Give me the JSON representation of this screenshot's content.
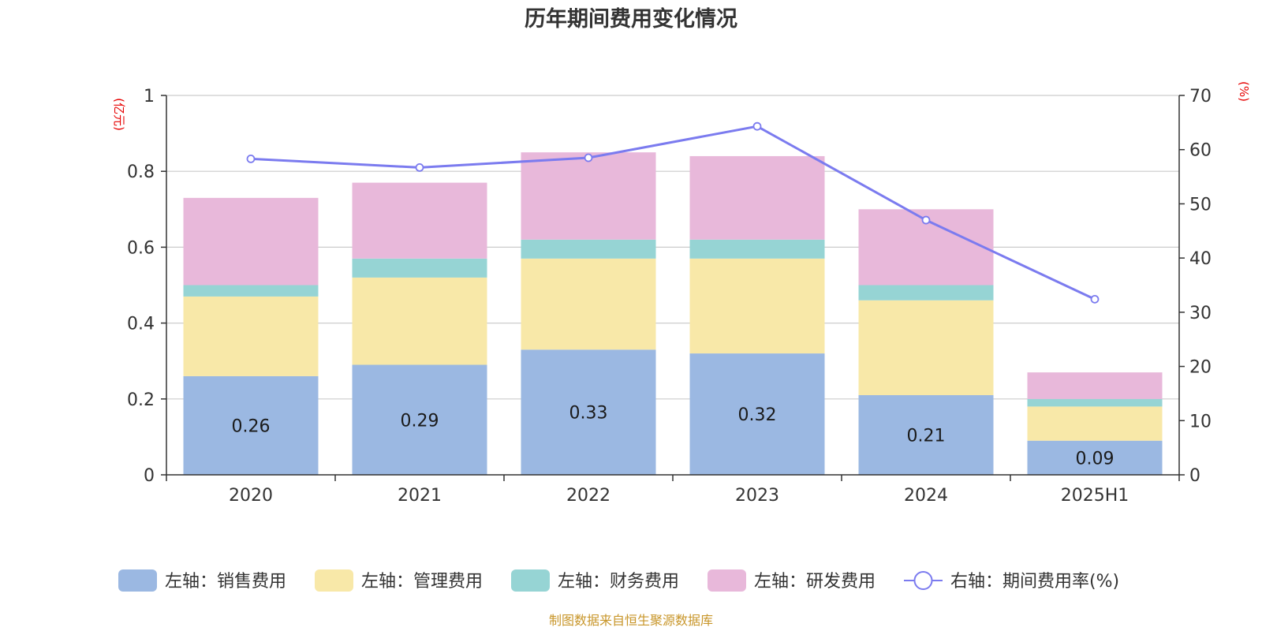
{
  "chart_data": {
    "type": "bar",
    "title": "历年期间费用变化情况",
    "categories": [
      "2020",
      "2021",
      "2022",
      "2023",
      "2024",
      "2025H1"
    ],
    "left_axis": {
      "unit": "(亿元)",
      "ylim": [
        0,
        1
      ],
      "ticks": [
        "0",
        "0.2",
        "0.4",
        "0.6",
        "0.8",
        "1"
      ],
      "tick_values": [
        0,
        0.2,
        0.4,
        0.6,
        0.8,
        1
      ]
    },
    "right_axis": {
      "unit": "(%)",
      "ylim": [
        0,
        70
      ],
      "ticks": [
        "0",
        "10",
        "20",
        "30",
        "40",
        "50",
        "60",
        "70"
      ],
      "tick_values": [
        0,
        10,
        20,
        30,
        40,
        50,
        60,
        70
      ]
    },
    "series": [
      {
        "name": "左轴：销售费用",
        "type": "bar",
        "stack": true,
        "color": "#9bb8e2",
        "values": [
          0.26,
          0.29,
          0.33,
          0.32,
          0.21,
          0.09
        ],
        "labels": [
          "0.26",
          "0.29",
          "0.33",
          "0.32",
          "0.21",
          "0.09"
        ]
      },
      {
        "name": "左轴：管理费用",
        "type": "bar",
        "stack": true,
        "color": "#f8e8a8",
        "values": [
          0.21,
          0.23,
          0.24,
          0.25,
          0.25,
          0.09
        ]
      },
      {
        "name": "左轴：财务费用",
        "type": "bar",
        "stack": true,
        "color": "#96d4d4",
        "values": [
          0.03,
          0.05,
          0.05,
          0.05,
          0.04,
          0.02
        ]
      },
      {
        "name": "左轴：研发费用",
        "type": "bar",
        "stack": true,
        "color": "#e8b8da",
        "values": [
          0.23,
          0.2,
          0.23,
          0.22,
          0.2,
          0.07
        ]
      },
      {
        "name": "右轴：期间费用率(%)",
        "type": "line",
        "axis": "right",
        "color": "#7b7bef",
        "values": [
          58.3,
          56.7,
          58.5,
          64.3,
          47.0,
          32.4
        ]
      }
    ],
    "grid": true,
    "legend_position": "bottom"
  },
  "source": "制图数据来自恒生聚源数据库"
}
